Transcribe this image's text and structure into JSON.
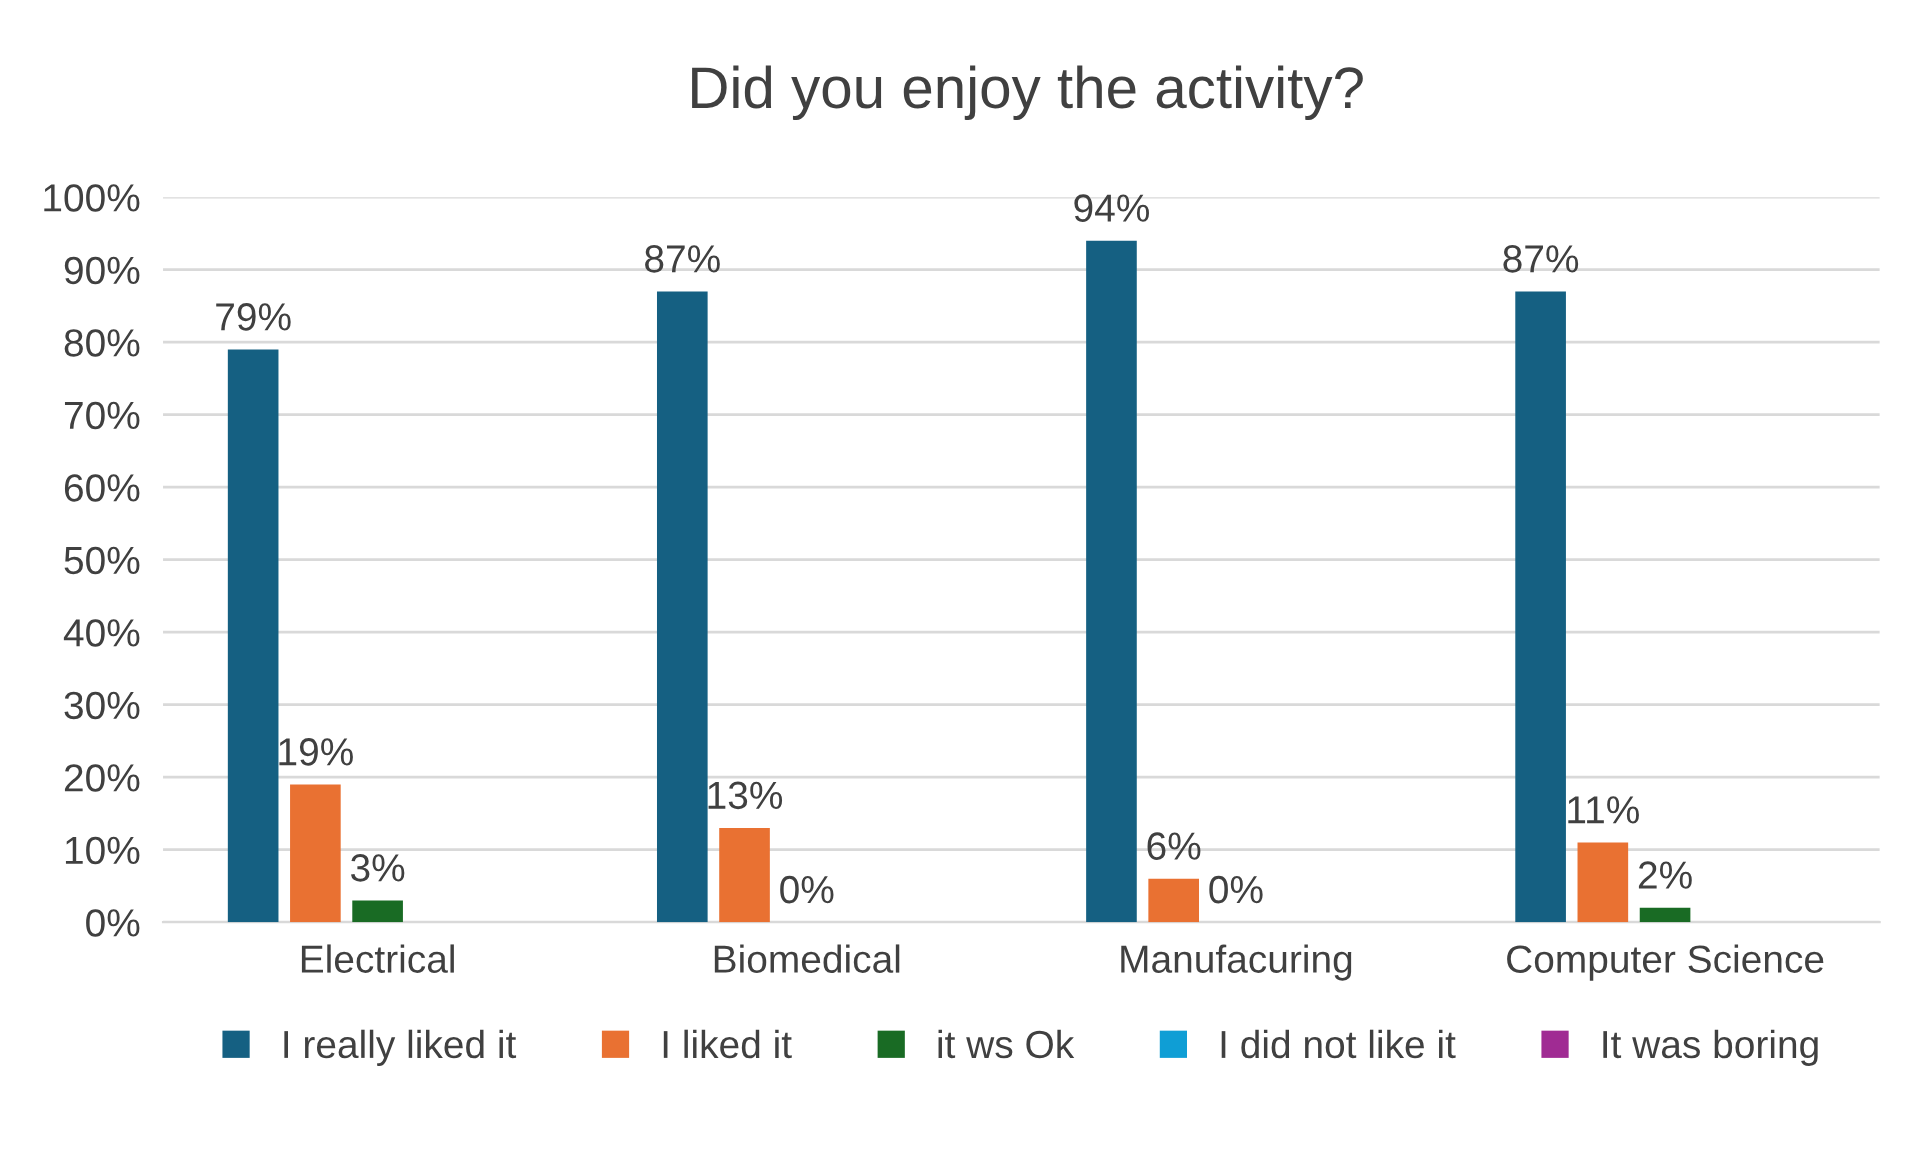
{
  "chart_data": {
    "type": "bar",
    "title": "Did you enjoy the activity?",
    "categories": [
      "Electrical",
      "Biomedical",
      "Manufacuring",
      "Computer Science"
    ],
    "series": [
      {
        "name": "I really liked it",
        "color": "#156082",
        "values": [
          79,
          87,
          94,
          87
        ],
        "value_labels": [
          "79%",
          "87%",
          "94%",
          "87%"
        ]
      },
      {
        "name": "I liked it",
        "color": "#e97132",
        "values": [
          19,
          13,
          6,
          11
        ],
        "value_labels": [
          "19%",
          "13%",
          "6%",
          "11%"
        ]
      },
      {
        "name": "it ws Ok",
        "color": "#196b24",
        "values": [
          3,
          0,
          0,
          2
        ],
        "value_labels": [
          "3%",
          "0%",
          "0%",
          "2%"
        ]
      },
      {
        "name": "I did not like it",
        "color": "#0f9ed5",
        "values": [
          0,
          0,
          0,
          0
        ],
        "value_labels": [
          null,
          null,
          null,
          null
        ]
      },
      {
        "name": "It was boring",
        "color": "#a02b93",
        "values": [
          0,
          0,
          0,
          0
        ],
        "value_labels": [
          null,
          null,
          null,
          null
        ]
      }
    ],
    "ylim": [
      0,
      100
    ],
    "yticks": [
      {
        "value": 0,
        "label": "0%"
      },
      {
        "value": 10,
        "label": "10%"
      },
      {
        "value": 20,
        "label": "20%"
      },
      {
        "value": 30,
        "label": "30%"
      },
      {
        "value": 40,
        "label": "40%"
      },
      {
        "value": 50,
        "label": "50%"
      },
      {
        "value": 60,
        "label": "60%"
      },
      {
        "value": 70,
        "label": "70%"
      },
      {
        "value": 80,
        "label": "80%"
      },
      {
        "value": 90,
        "label": "90%"
      },
      {
        "value": 100,
        "label": "100%"
      }
    ],
    "grid": "y",
    "legend": "bottom"
  }
}
